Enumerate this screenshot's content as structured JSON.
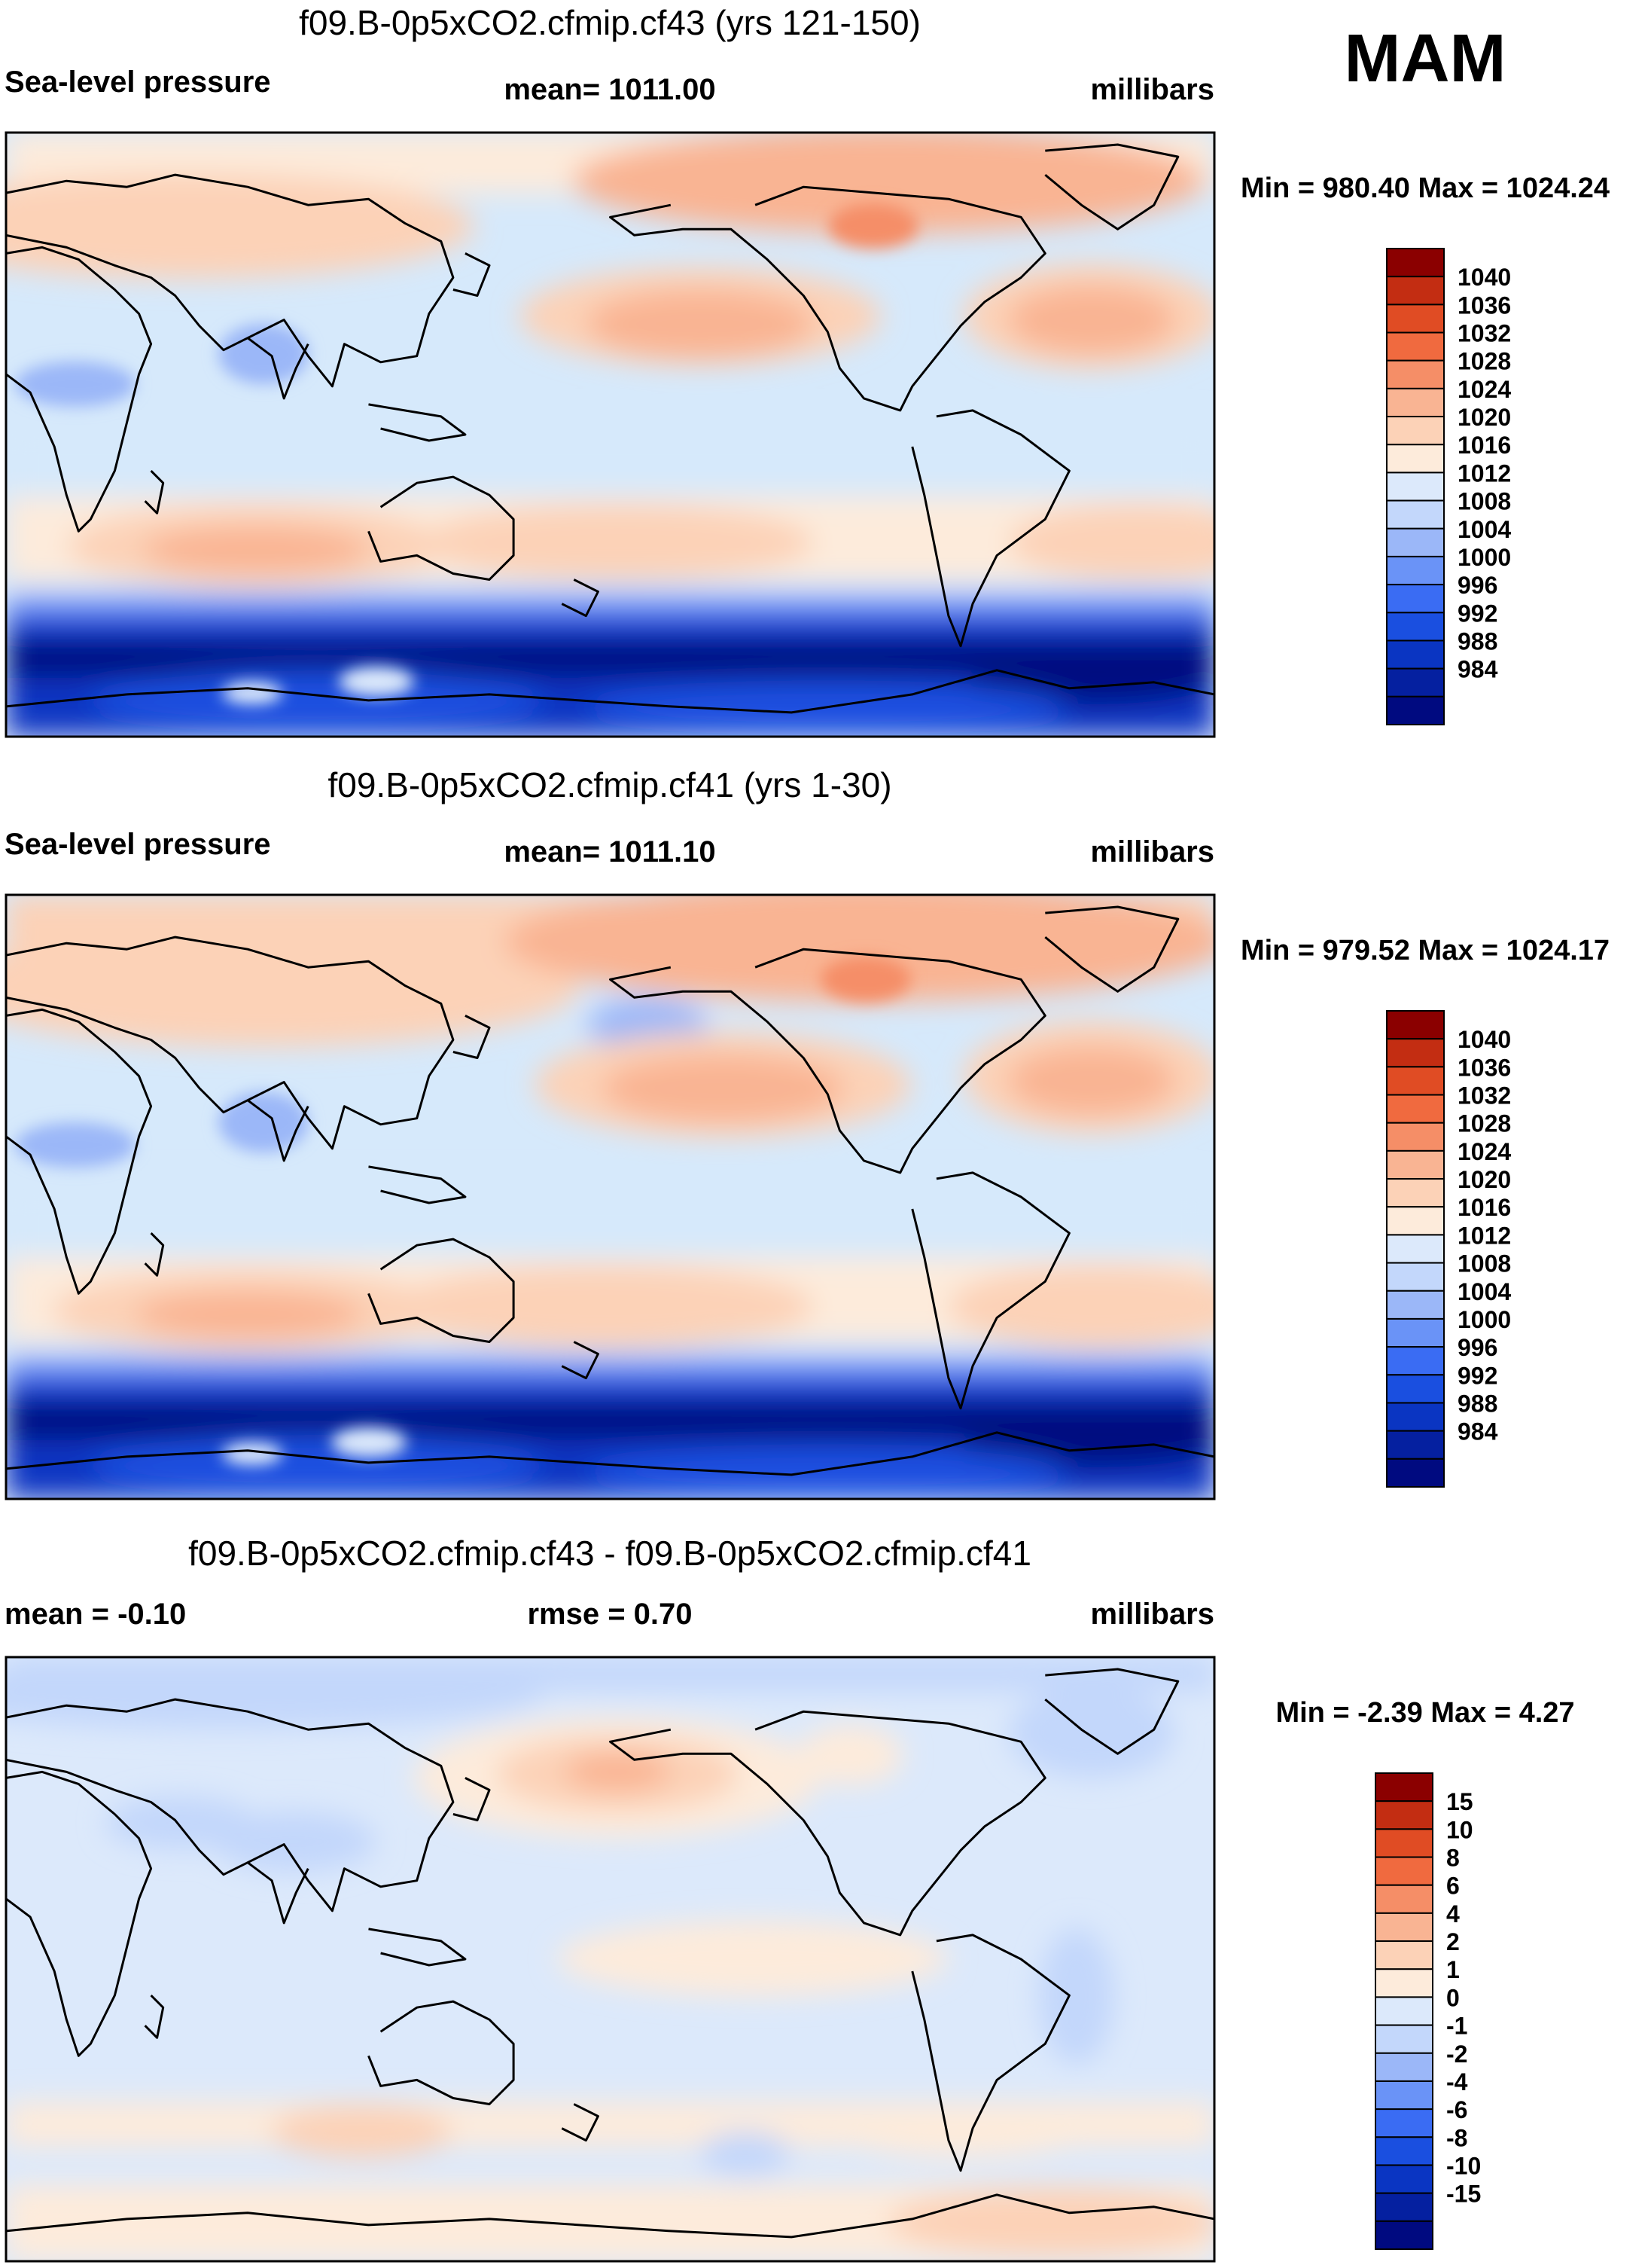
{
  "season": "MAM",
  "colors": {
    "ocean_base": "#d6e9fb",
    "coast": "#000000",
    "pressure_levels": [
      "#000a80",
      "#0520a0",
      "#0a35c2",
      "#1a4fe0",
      "#3a6cf3",
      "#6a93f7",
      "#9bb7f8",
      "#c3d7fb",
      "#dce9fb",
      "#fdebdb",
      "#fcd2b7",
      "#f9b493",
      "#f58e67",
      "#f06a3f",
      "#e04c24",
      "#c32d12",
      "#8b0000"
    ],
    "diff_levels": [
      "#000a80",
      "#0520a0",
      "#0a35c2",
      "#1a4fe0",
      "#3a6cf3",
      "#6a93f7",
      "#9bb7f8",
      "#c3d7fb",
      "#dce9fb",
      "#fdebdb",
      "#fcd2b7",
      "#f9b493",
      "#f58e67",
      "#f06a3f",
      "#e04c24",
      "#c32d12",
      "#8b0000"
    ]
  },
  "panels": [
    {
      "id": "cf43",
      "title": "f09.B-0p5xCO2.cfmip.cf43 (yrs 121-150)",
      "left_label": "Sea-level pressure",
      "center_label": "mean= 1011.00",
      "right_label": "millibars",
      "minmax": "Min = 980.40 Max = 1024.24",
      "colorbar_labels": [
        "1040",
        "1036",
        "1032",
        "1028",
        "1024",
        "1020",
        "1016",
        "1012",
        "1008",
        "1004",
        "1000",
        "996",
        "992",
        "988",
        "984"
      ],
      "variant": "pressure",
      "field_min": 980.4,
      "field_max": 1024.24
    },
    {
      "id": "cf41",
      "title": "f09.B-0p5xCO2.cfmip.cf41 (yrs 1-30)",
      "left_label": "Sea-level pressure",
      "center_label": "mean= 1011.10",
      "right_label": "millibars",
      "minmax": "Min = 979.52 Max = 1024.17",
      "colorbar_labels": [
        "1040",
        "1036",
        "1032",
        "1028",
        "1024",
        "1020",
        "1016",
        "1012",
        "1008",
        "1004",
        "1000",
        "996",
        "992",
        "988",
        "984"
      ],
      "variant": "pressure",
      "field_min": 979.52,
      "field_max": 1024.17
    },
    {
      "id": "diff",
      "title": "f09.B-0p5xCO2.cfmip.cf43 - f09.B-0p5xCO2.cfmip.cf41",
      "left_label": "mean =  -0.10",
      "center_label": "rmse =   0.70",
      "right_label": "millibars",
      "minmax": "Min =  -2.39 Max =   4.27",
      "colorbar_labels": [
        "15",
        "10",
        "8",
        "6",
        "4",
        "2",
        "1",
        "0",
        "-1",
        "-2",
        "-4",
        "-6",
        "-8",
        "-10",
        "-15"
      ],
      "variant": "difference",
      "field_min": -2.39,
      "field_max": 4.27
    }
  ]
}
